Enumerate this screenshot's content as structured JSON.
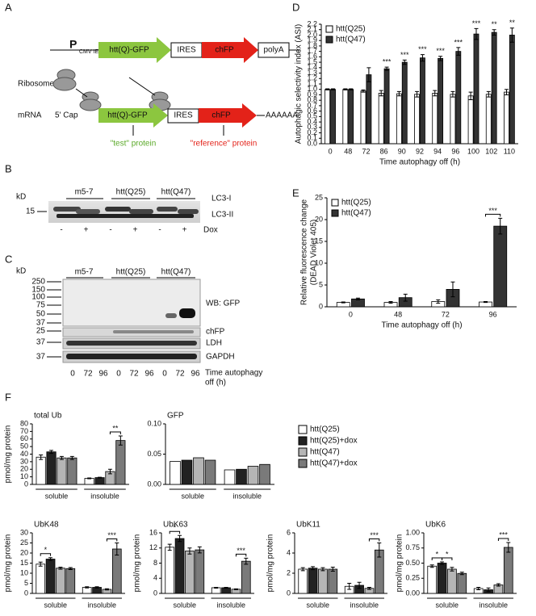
{
  "panel_labels": [
    "A",
    "B",
    "C",
    "D",
    "E",
    "F"
  ],
  "panel_a": {
    "promoter": "P",
    "promoter_sub": "CMV IE",
    "construct": [
      "htt(Q)-GFP",
      "IRES",
      "chFP",
      "polyA"
    ],
    "ribosome": "Ribosome",
    "mrna": "mRNA",
    "cap": "5' Cap",
    "transcript": [
      "htt(Q)-GFP",
      "IRES",
      "chFP",
      "AAAAAA"
    ],
    "test": "\"test\" protein",
    "reference": "\"reference\" protein"
  },
  "panel_b": {
    "kd": "kD",
    "marker": "15",
    "groups": [
      "m5-7",
      "htt(Q25)",
      "htt(Q47)"
    ],
    "bands": [
      "LC3-I",
      "LC3-II"
    ],
    "lanes": [
      "-",
      "+",
      "-",
      "+",
      "-",
      "+"
    ],
    "lane_title": "Dox"
  },
  "panel_c": {
    "kd": "kD",
    "markers": [
      "250",
      "150",
      "100",
      "75",
      "50",
      "37",
      "25",
      "37",
      "37"
    ],
    "groups": [
      "m5-7",
      "htt(Q25)",
      "htt(Q47)"
    ],
    "blots": [
      "WB: GFP",
      "chFP",
      "LDH",
      "GAPDH"
    ],
    "lanes": [
      "0",
      "72",
      "96",
      "0",
      "72",
      "96",
      "0",
      "72",
      "96"
    ],
    "lane_title": [
      "Time autophagy",
      "off (h)"
    ]
  },
  "chart_data": [
    {
      "type": "bar",
      "ylabel": "Autophagic selectivity index (ASI)",
      "xlabel": "Time autophagy off (h)",
      "categories": [
        "0",
        "48",
        "72",
        "86",
        "90",
        "92",
        "94",
        "96",
        "100",
        "102",
        "110"
      ],
      "ylim": [
        0,
        2.2
      ],
      "yticks": [
        {
          "value": 0,
          "label": "0.0"
        },
        {
          "value": 0.1,
          "label": "0.1"
        },
        {
          "value": 0.2,
          "label": "0.2"
        },
        {
          "value": 0.3,
          "label": "0.3"
        },
        {
          "value": 0.4,
          "label": "0.4"
        },
        {
          "value": 0.5,
          "label": "0.5"
        },
        {
          "value": 0.6,
          "label": "0.6"
        },
        {
          "value": 0.7,
          "label": "0.7"
        },
        {
          "value": 0.8,
          "label": "0.8"
        },
        {
          "value": 0.9,
          "label": "0.9"
        },
        {
          "value": 1,
          "label": "1.0"
        },
        {
          "value": 1.1,
          "label": "1.1"
        },
        {
          "value": 1.2,
          "label": "1.2"
        },
        {
          "value": 1.3,
          "label": "1.3"
        },
        {
          "value": 1.4,
          "label": "1.4"
        },
        {
          "value": 1.5,
          "label": "1.5"
        },
        {
          "value": 1.6,
          "label": "1.6"
        },
        {
          "value": 1.7,
          "label": "1.7"
        },
        {
          "value": 1.8,
          "label": "1.8"
        },
        {
          "value": 1.9,
          "label": "1.9"
        },
        {
          "value": 2,
          "label": "2.0"
        },
        {
          "value": 2.1,
          "label": "2.1"
        },
        {
          "value": 2.2,
          "label": "2.2"
        }
      ],
      "series": [
        {
          "name": "htt(Q25)",
          "color": "#ffffff",
          "values": [
            1.0,
            1.0,
            0.97,
            0.93,
            0.92,
            0.91,
            0.93,
            0.91,
            0.88,
            0.91,
            0.95
          ],
          "errors": [
            0.01,
            0.01,
            0.02,
            0.05,
            0.04,
            0.05,
            0.05,
            0.05,
            0.07,
            0.05,
            0.05
          ]
        },
        {
          "name": "htt(Q47)",
          "color": "#333333",
          "values": [
            1.0,
            1.0,
            1.27,
            1.38,
            1.5,
            1.58,
            1.57,
            1.7,
            2.02,
            2.05,
            2.0
          ],
          "errors": [
            0.01,
            0.01,
            0.13,
            0.03,
            0.04,
            0.06,
            0.04,
            0.07,
            0.1,
            0.05,
            0.13
          ]
        }
      ],
      "annotations": [
        {
          "label": "***",
          "category": 3,
          "series": 1
        },
        {
          "label": "***",
          "category": 4,
          "series": 1
        },
        {
          "label": "***",
          "category": 5,
          "series": 1
        },
        {
          "label": "***",
          "category": 6,
          "series": 1
        },
        {
          "label": "***",
          "category": 7,
          "series": 1
        },
        {
          "label": "***",
          "category": 8,
          "series": 1
        },
        {
          "label": "**",
          "category": 9,
          "series": 1
        },
        {
          "label": "**",
          "category": 10,
          "series": 1
        }
      ],
      "legend": "upper left"
    },
    {
      "type": "bar",
      "ylabel": "Relative fluorescence change",
      "ylabel2": "(DEAD Violet 405)",
      "xlabel": "Time autophagy off (h)",
      "categories": [
        "0",
        "48",
        "72",
        "96"
      ],
      "ylim": [
        0,
        25
      ],
      "yticks": [
        0,
        5,
        10,
        15,
        20,
        25
      ],
      "series": [
        {
          "name": "htt(Q25)",
          "color": "#ffffff",
          "values": [
            1.0,
            1.0,
            1.2,
            1.1
          ],
          "errors": [
            0.1,
            0.2,
            0.4,
            0.1
          ]
        },
        {
          "name": "htt(Q47)",
          "color": "#333333",
          "values": [
            1.8,
            2.1,
            4.0,
            18.5
          ],
          "errors": [
            0.2,
            0.8,
            1.7,
            1.8
          ]
        }
      ],
      "annotations": [
        {
          "label": "***",
          "category": 3,
          "series": [
            0,
            1
          ]
        }
      ],
      "legend": "upper left"
    },
    {
      "type": "bar-grid",
      "series": [
        {
          "name": "htt(Q25)",
          "color": "#ffffff"
        },
        {
          "name": "htt(Q25)+dox",
          "color": "#222222"
        },
        {
          "name": "htt(Q47)",
          "color": "#b5b5b5"
        },
        {
          "name": "htt(Q47)+dox",
          "color": "#7a7a7a"
        }
      ],
      "subplots": [
        {
          "title": "total Ub",
          "ylabel": "pmol/mg protein",
          "categories": [
            "soluble",
            "insoluble"
          ],
          "ylim": [
            0,
            80
          ],
          "yticks": [
            0,
            10,
            20,
            30,
            40,
            50,
            60,
            70,
            80
          ],
          "values": [
            [
              36,
              8
            ],
            [
              43,
              9
            ],
            [
              35,
              17
            ],
            [
              35,
              58
            ]
          ],
          "errors": [
            [
              3,
              0.5
            ],
            [
              2,
              0.5
            ],
            [
              2,
              3
            ],
            [
              2,
              6
            ]
          ],
          "annotations": [
            {
              "label": "**",
              "category": 1,
              "series": [
                2,
                3
              ]
            }
          ]
        },
        {
          "title": "GFP",
          "categories": [
            "soluble",
            "insoluble"
          ],
          "ylim": [
            0,
            0.1
          ],
          "yticks": [
            {
              "value": 0,
              "label": "0.00"
            },
            {
              "value": 0.05,
              "label": "0.05"
            },
            {
              "value": 0.1,
              "label": "0.10"
            }
          ],
          "values": [
            [
              0.038,
              0.024
            ],
            [
              0.04,
              0.025
            ],
            [
              0.044,
              0.03
            ],
            [
              0.04,
              0.033
            ]
          ]
        },
        {
          "title": "UbK48",
          "ylabel": "pmol/mg protein",
          "categories": [
            "soluble",
            "insoluble"
          ],
          "ylim": [
            0,
            30
          ],
          "yticks": [
            0,
            5,
            10,
            15,
            20,
            25,
            30
          ],
          "values": [
            [
              14.5,
              3
            ],
            [
              17,
              3
            ],
            [
              12.5,
              2
            ],
            [
              12.3,
              22
            ]
          ],
          "errors": [
            [
              1,
              0.3
            ],
            [
              0.7,
              0.3
            ],
            [
              0.5,
              0.3
            ],
            [
              0.5,
              3
            ]
          ],
          "annotations": [
            {
              "label": "*",
              "category": 0,
              "series": [
                0,
                1
              ]
            },
            {
              "label": "***",
              "category": 1,
              "series": [
                2,
                3
              ]
            }
          ]
        },
        {
          "title": "UbK63",
          "ylabel": "pmol/mg protein",
          "categories": [
            "soluble",
            "insoluble"
          ],
          "ylim": [
            0,
            16
          ],
          "yticks": [
            0,
            4,
            8,
            12,
            16
          ],
          "values": [
            [
              12.2,
              1.5
            ],
            [
              14.5,
              1.5
            ],
            [
              11.2,
              1.1
            ],
            [
              11.5,
              8.5
            ]
          ],
          "errors": [
            [
              0.8,
              0.1
            ],
            [
              0.8,
              0.1
            ],
            [
              0.8,
              0.1
            ],
            [
              0.8,
              0.8
            ]
          ],
          "annotations": [
            {
              "label": "*",
              "category": 0,
              "series": [
                0,
                1
              ]
            },
            {
              "label": "***",
              "category": 1,
              "series": [
                2,
                3
              ]
            }
          ]
        },
        {
          "title": "UbK11",
          "ylabel": "pmol/mg protein",
          "categories": [
            "soluble",
            "insoluble"
          ],
          "ylim": [
            0,
            6
          ],
          "yticks": [
            0,
            2,
            4,
            6
          ],
          "values": [
            [
              2.4,
              0.7
            ],
            [
              2.5,
              0.8
            ],
            [
              2.4,
              0.5
            ],
            [
              2.4,
              4.3
            ]
          ],
          "errors": [
            [
              0.15,
              0.3
            ],
            [
              0.15,
              0.3
            ],
            [
              0.15,
              0.1
            ],
            [
              0.2,
              0.7
            ]
          ],
          "annotations": [
            {
              "label": "***",
              "category": 1,
              "series": [
                2,
                3
              ]
            }
          ]
        },
        {
          "title": "UbK6",
          "ylabel": "pmol/mg protein",
          "categories": [
            "soluble",
            "insoluble"
          ],
          "ylim": [
            0,
            1
          ],
          "yticks": [
            {
              "value": 0,
              "label": "0.00"
            },
            {
              "value": 0.25,
              "label": "0.25"
            },
            {
              "value": 0.5,
              "label": "0.50"
            },
            {
              "value": 0.75,
              "label": "0.75"
            },
            {
              "value": 1,
              "label": "1.00"
            }
          ],
          "values": [
            [
              0.45,
              0.08
            ],
            [
              0.5,
              0.06
            ],
            [
              0.4,
              0.14
            ],
            [
              0.33,
              0.76
            ]
          ],
          "errors": [
            [
              0.02,
              0.02
            ],
            [
              0.02,
              0.03
            ],
            [
              0.03,
              0.02
            ],
            [
              0.02,
              0.08
            ]
          ],
          "annotations": [
            {
              "label": "*",
              "category": 0,
              "series": [
                0,
                1
              ]
            },
            {
              "label": "*",
              "category": 0,
              "series": [
                1,
                2
              ]
            },
            {
              "label": "***",
              "category": 1,
              "series": [
                2,
                3
              ]
            }
          ]
        }
      ]
    }
  ]
}
